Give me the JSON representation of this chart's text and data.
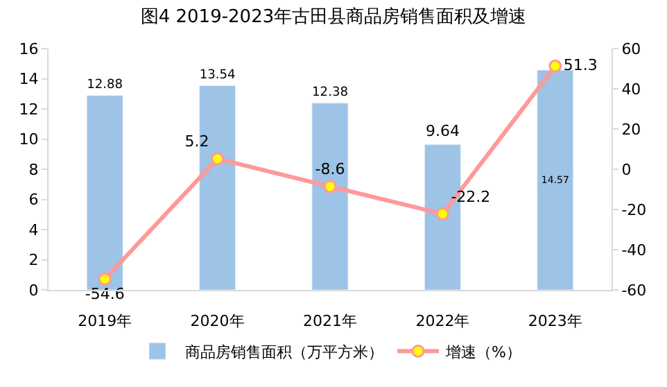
{
  "chart_data": {
    "type": "bar",
    "title": "图4 2019-2023年古田县商品房销售面积及增速",
    "categories": [
      "2019年",
      "2020年",
      "2021年",
      "2022年",
      "2023年"
    ],
    "series": [
      {
        "name": "商品房销售面积（万平方米）",
        "color": "#9dc3e6",
        "values": [
          12.88,
          13.54,
          12.38,
          9.64,
          14.57
        ]
      },
      {
        "name": "增速（%）",
        "type": "line",
        "axis": "y2",
        "color": "#ff9999",
        "marker": "circle",
        "values": [
          -54.6,
          5.2,
          -8.6,
          -22.2,
          51.3
        ]
      }
    ],
    "ylim": [
      0,
      16
    ],
    "yticks": [
      0,
      2,
      4,
      6,
      8,
      10,
      12,
      14,
      16
    ],
    "y2lim": [
      -60,
      60
    ],
    "y2ticks": [
      -60,
      -40,
      -20,
      0,
      20,
      40,
      60
    ],
    "data_labels": true,
    "legend": "bottom"
  }
}
